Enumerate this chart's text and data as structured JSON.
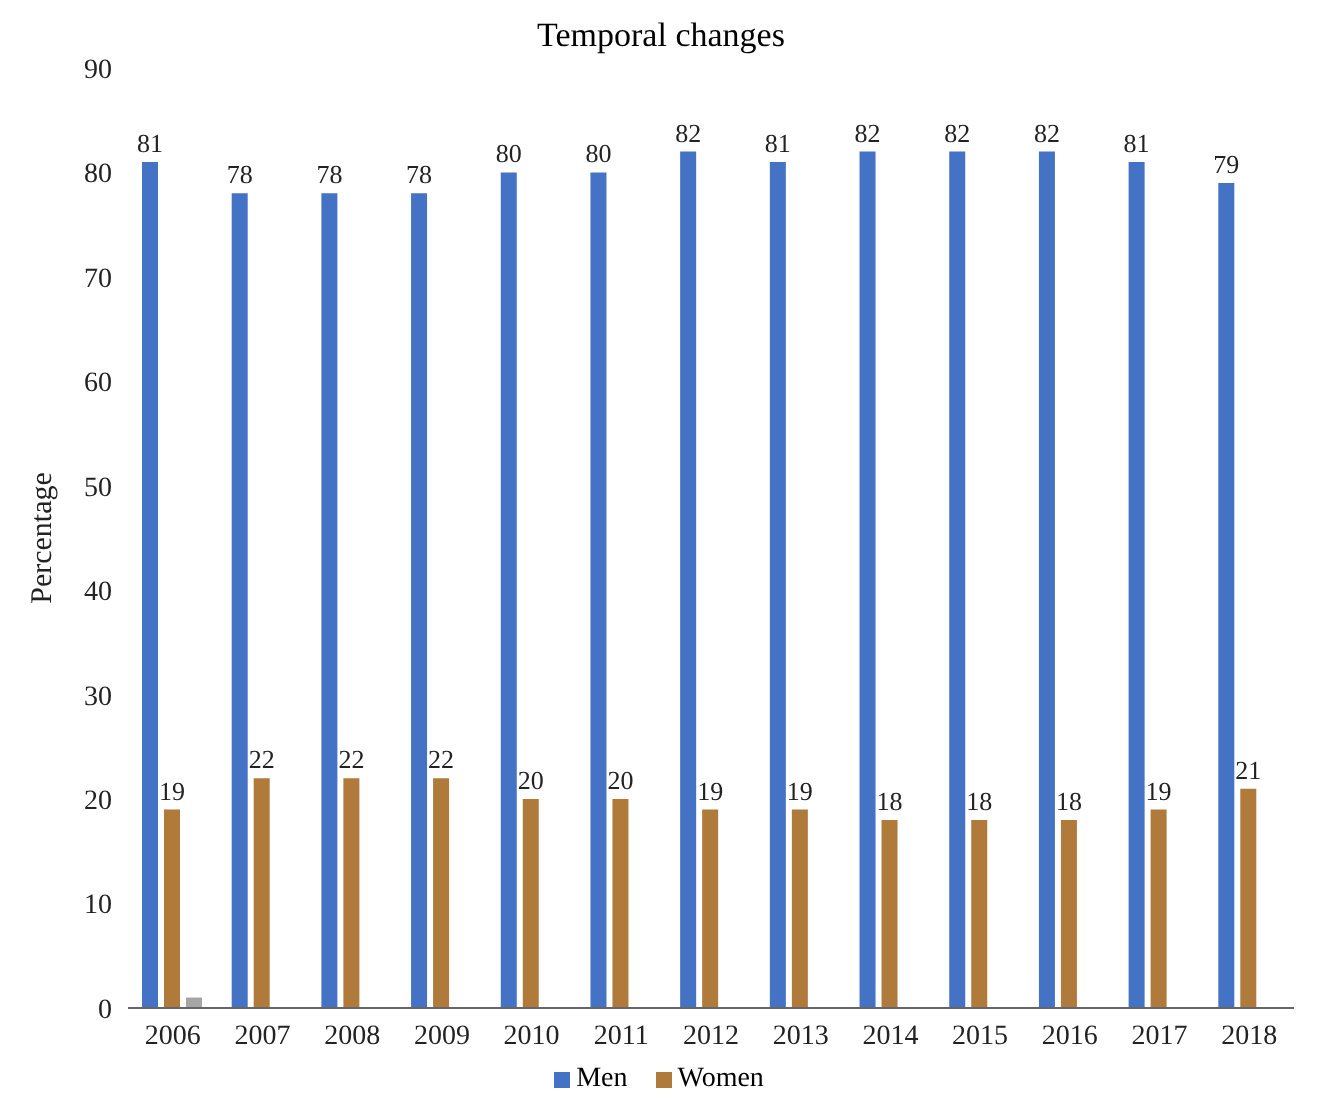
{
  "chart_data": {
    "type": "bar",
    "title": "Temporal changes",
    "ylabel": "Percentage",
    "categories": [
      "2006",
      "2007",
      "2008",
      "2009",
      "2010",
      "2011",
      "2012",
      "2013",
      "2014",
      "2015",
      "2016",
      "2017",
      "2018"
    ],
    "series": [
      {
        "name": "Men",
        "color": "#4472c4",
        "values": [
          81,
          78,
          78,
          78,
          80,
          80,
          82,
          81,
          82,
          82,
          82,
          81,
          79
        ],
        "value_labels": [
          "81",
          "78",
          "78",
          "78",
          "80",
          "80",
          "82",
          "81",
          "82",
          "82",
          "82",
          "81",
          "79"
        ]
      },
      {
        "name": "Women",
        "color": "#b07a3b",
        "values": [
          19,
          22,
          22,
          22,
          20,
          20,
          19,
          19,
          18,
          18,
          18,
          19,
          21
        ],
        "value_labels": [
          "19",
          "22",
          "22",
          "22",
          "20",
          "20",
          "19",
          "19",
          "18",
          "18",
          "18",
          "19",
          "21"
        ]
      },
      {
        "color": "#a5a5a5",
        "values": [
          1,
          null,
          null,
          null,
          null,
          null,
          null,
          null,
          null,
          null,
          null,
          null,
          null
        ]
      }
    ],
    "ylim": [
      0,
      90
    ],
    "yticks": [
      0,
      10,
      20,
      30,
      40,
      50,
      60,
      70,
      80,
      90
    ],
    "grid": false,
    "legend": "bottom"
  }
}
